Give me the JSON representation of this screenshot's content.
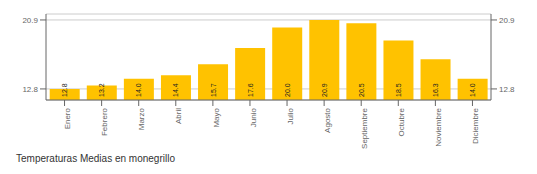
{
  "chart_data": {
    "type": "bar",
    "title": "Temperaturas Medias en monegrillo",
    "categories": [
      "Enero",
      "Febrero",
      "Marzo",
      "Abril",
      "Mayo",
      "Junio",
      "Julio",
      "Agosto",
      "Septiembre",
      "Octubre",
      "Noviembre",
      "Diciembre"
    ],
    "values": [
      12.8,
      13.2,
      14.0,
      14.4,
      15.7,
      17.6,
      20.0,
      20.9,
      20.5,
      18.5,
      16.3,
      14.0
    ],
    "value_labels": [
      "12.8",
      "13.2",
      "14.0",
      "14.4",
      "15.7",
      "17.6",
      "20.0",
      "20.9",
      "20.5",
      "18.5",
      "16.3",
      "14.0"
    ],
    "color": "#FFC200",
    "ylim": [
      11.5,
      21.6
    ],
    "yticks": [
      12.8,
      20.9
    ],
    "grid": true,
    "data_labels": true
  }
}
